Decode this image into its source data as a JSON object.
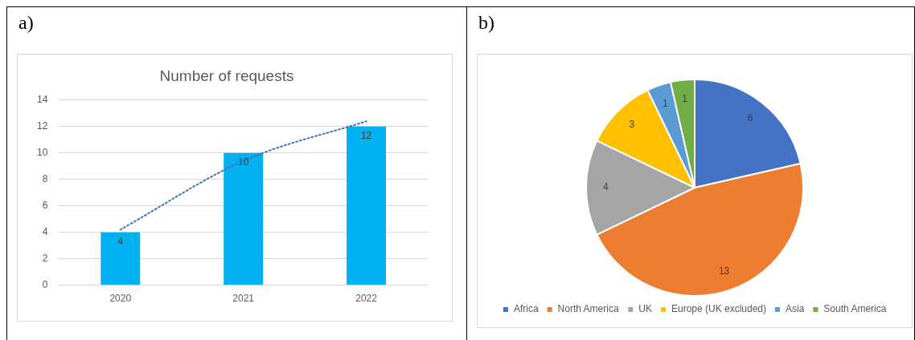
{
  "chart_data": [
    {
      "type": "bar",
      "title": "Number of requests",
      "annotations": [
        "a)"
      ],
      "categories": [
        "2020",
        "2021",
        "2022"
      ],
      "series": [
        {
          "type": "bar",
          "color": "#00b0f0",
          "values": [
            4,
            10,
            12
          ],
          "value_labels": [
            "4",
            "10",
            "12"
          ]
        },
        {
          "type": "line",
          "color": "#4472c4",
          "values": [
            4.2,
            9.4,
            12.4
          ],
          "line_style": "dotted",
          "marker": "none"
        }
      ],
      "ylim": [
        0,
        14
      ],
      "yticks": [
        0,
        2,
        4,
        6,
        8,
        10,
        12,
        14
      ],
      "grid": "y",
      "legend": false
    },
    {
      "type": "pie",
      "annotations": [
        "b)"
      ],
      "categories": [
        "Africa",
        "North America",
        "UK",
        "Europe (UK excluded)",
        "Asia",
        "South America"
      ],
      "values": [
        6,
        13,
        4,
        3,
        1,
        1
      ],
      "colors": [
        "#4472c4",
        "#ed7d31",
        "#a5a5a5",
        "#ffc000",
        "#5b9bd5",
        "#70ad47"
      ],
      "data_labels": true,
      "legend": "bottom"
    }
  ]
}
